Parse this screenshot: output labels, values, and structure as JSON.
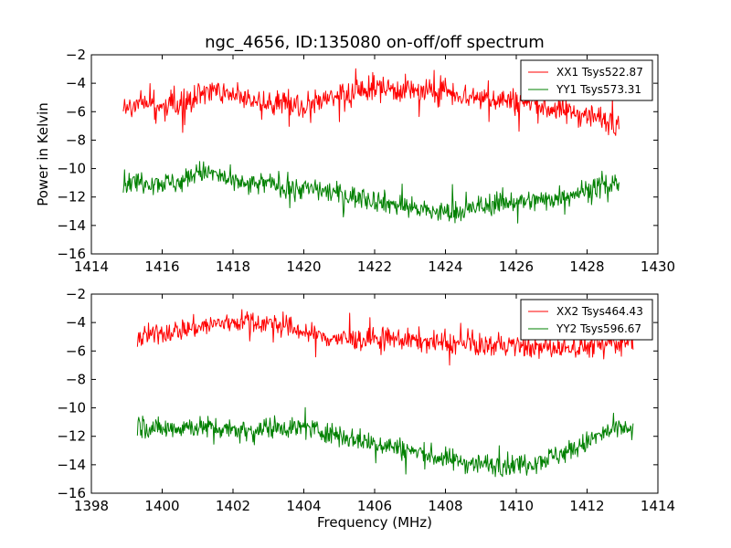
{
  "chart_data": [
    {
      "type": "line",
      "title": "ngc_4656, ID:135080 on-off/off spectrum",
      "xlabel": "",
      "ylabel": "Power in Kelvin",
      "xlim": [
        1414,
        1430
      ],
      "ylim": [
        -16,
        -2
      ],
      "xticks": [
        "1414",
        "1416",
        "1418",
        "1420",
        "1422",
        "1424",
        "1426",
        "1428",
        "1430"
      ],
      "yticks": [
        "-16",
        "-14",
        "-12",
        "-10",
        "-8",
        "-6",
        "-4",
        "-2"
      ],
      "legend": "top-right",
      "series": [
        {
          "name": "XX1 Tsys522.87",
          "color": "#ff0000",
          "x": [
            1414.9,
            1415.5,
            1416.0,
            1416.5,
            1417.0,
            1417.5,
            1418.0,
            1418.5,
            1419.0,
            1419.5,
            1420.0,
            1420.5,
            1421.0,
            1421.5,
            1422.0,
            1422.5,
            1423.0,
            1423.5,
            1424.0,
            1424.5,
            1425.0,
            1425.5,
            1426.0,
            1426.5,
            1427.0,
            1427.5,
            1428.0,
            1428.5,
            1428.9
          ],
          "y": [
            -6.0,
            -5.3,
            -5.8,
            -5.6,
            -4.9,
            -4.5,
            -4.7,
            -5.3,
            -5.6,
            -5.3,
            -5.6,
            -5.1,
            -5.0,
            -4.6,
            -4.3,
            -4.4,
            -4.5,
            -4.7,
            -4.4,
            -4.9,
            -5.0,
            -5.1,
            -5.3,
            -5.5,
            -5.8,
            -6.0,
            -6.2,
            -6.6,
            -6.7
          ],
          "noise": 0.9,
          "points": 760
        },
        {
          "name": "YY1 Tsys573.31",
          "color": "#008000",
          "x": [
            1414.9,
            1415.5,
            1416.0,
            1416.5,
            1417.0,
            1417.5,
            1418.0,
            1418.5,
            1419.0,
            1419.5,
            1420.0,
            1420.5,
            1421.0,
            1421.5,
            1422.0,
            1422.5,
            1423.0,
            1423.5,
            1424.0,
            1424.5,
            1425.0,
            1425.5,
            1426.0,
            1426.5,
            1427.0,
            1427.5,
            1428.0,
            1428.5,
            1428.9
          ],
          "y": [
            -11.0,
            -10.9,
            -11.0,
            -11.0,
            -10.2,
            -10.4,
            -11.0,
            -11.2,
            -11.0,
            -11.3,
            -11.4,
            -11.5,
            -11.8,
            -12.0,
            -12.2,
            -12.5,
            -12.7,
            -13.0,
            -13.1,
            -13.0,
            -12.7,
            -12.4,
            -12.3,
            -12.3,
            -12.1,
            -11.8,
            -11.5,
            -11.2,
            -11.0
          ],
          "noise": 0.75,
          "points": 760
        }
      ]
    },
    {
      "type": "line",
      "title": "",
      "xlabel": "Frequency (MHz)",
      "ylabel": "",
      "xlim": [
        1398,
        1414
      ],
      "ylim": [
        -16,
        -2
      ],
      "xticks": [
        "1398",
        "1400",
        "1402",
        "1404",
        "1406",
        "1408",
        "1410",
        "1412",
        "1414"
      ],
      "yticks": [
        "-16",
        "-14",
        "-12",
        "-10",
        "-8",
        "-6",
        "-4",
        "-2"
      ],
      "legend": "top-right",
      "series": [
        {
          "name": "XX2 Tsys464.43",
          "color": "#ff0000",
          "x": [
            1399.3,
            1399.8,
            1400.3,
            1400.8,
            1401.3,
            1401.8,
            1402.3,
            1402.8,
            1403.3,
            1403.8,
            1404.3,
            1404.8,
            1405.3,
            1405.8,
            1406.3,
            1406.8,
            1407.3,
            1407.8,
            1408.3,
            1408.8,
            1409.3,
            1409.8,
            1410.3,
            1410.8,
            1411.3,
            1411.8,
            1412.3,
            1412.8,
            1413.3
          ],
          "y": [
            -5.2,
            -4.8,
            -4.6,
            -4.4,
            -4.2,
            -4.0,
            -3.9,
            -4.0,
            -4.2,
            -4.5,
            -4.9,
            -5.1,
            -5.2,
            -5.2,
            -5.1,
            -5.2,
            -5.3,
            -5.4,
            -5.5,
            -5.6,
            -5.6,
            -5.6,
            -5.7,
            -5.8,
            -5.8,
            -5.7,
            -5.6,
            -5.4,
            -5.3
          ],
          "noise": 0.75,
          "points": 760
        },
        {
          "name": "YY2 Tsys596.67",
          "color": "#008000",
          "x": [
            1399.3,
            1399.8,
            1400.3,
            1400.8,
            1401.3,
            1401.8,
            1402.3,
            1402.8,
            1403.3,
            1403.8,
            1404.3,
            1404.8,
            1405.3,
            1405.8,
            1406.3,
            1406.8,
            1407.3,
            1407.8,
            1408.3,
            1408.8,
            1409.3,
            1409.8,
            1410.3,
            1410.8,
            1411.3,
            1411.8,
            1412.3,
            1412.8,
            1413.3
          ],
          "y": [
            -11.2,
            -11.5,
            -11.4,
            -11.3,
            -11.4,
            -11.4,
            -11.6,
            -11.5,
            -11.3,
            -11.4,
            -11.5,
            -11.8,
            -12.1,
            -12.4,
            -12.6,
            -12.9,
            -13.2,
            -13.5,
            -13.7,
            -13.9,
            -14.0,
            -14.0,
            -13.9,
            -13.6,
            -13.2,
            -12.7,
            -12.0,
            -11.5,
            -11.6
          ],
          "noise": 0.75,
          "points": 760
        }
      ]
    }
  ]
}
